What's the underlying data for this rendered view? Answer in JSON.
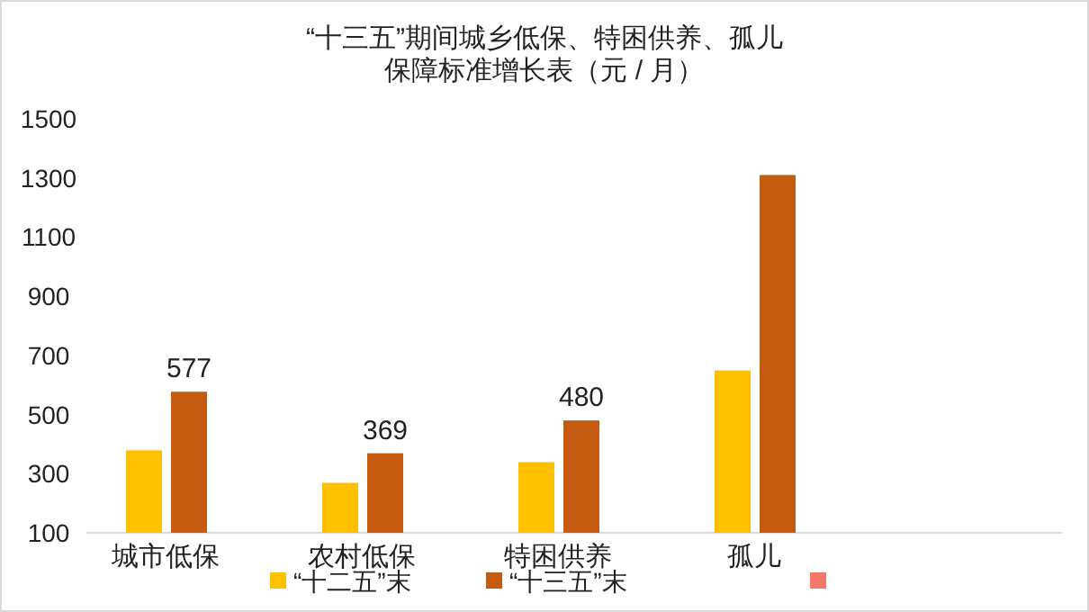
{
  "chart_data": {
    "type": "bar",
    "title": "“十三五”期间城乡低保、特困供养、孤儿保障标准增长表（元 / 月）",
    "categories": [
      "城市低保",
      "农村低保",
      "特困供养",
      "孤儿"
    ],
    "series": [
      {
        "name": "“十二五”末",
        "color": "#ffc000",
        "values": [
          379,
          269,
          339,
          649
        ]
      },
      {
        "name": "“十三五”末",
        "color": "#c55a11",
        "values": [
          577,
          369,
          480,
          1310
        ],
        "value_labels": [
          "577",
          "369",
          "480",
          null
        ]
      }
    ],
    "ylim": [
      100,
      1500
    ],
    "yticks": [
      100,
      300,
      500,
      700,
      900,
      1100,
      1300,
      1500
    ],
    "grid": false,
    "legend": "bottom"
  }
}
